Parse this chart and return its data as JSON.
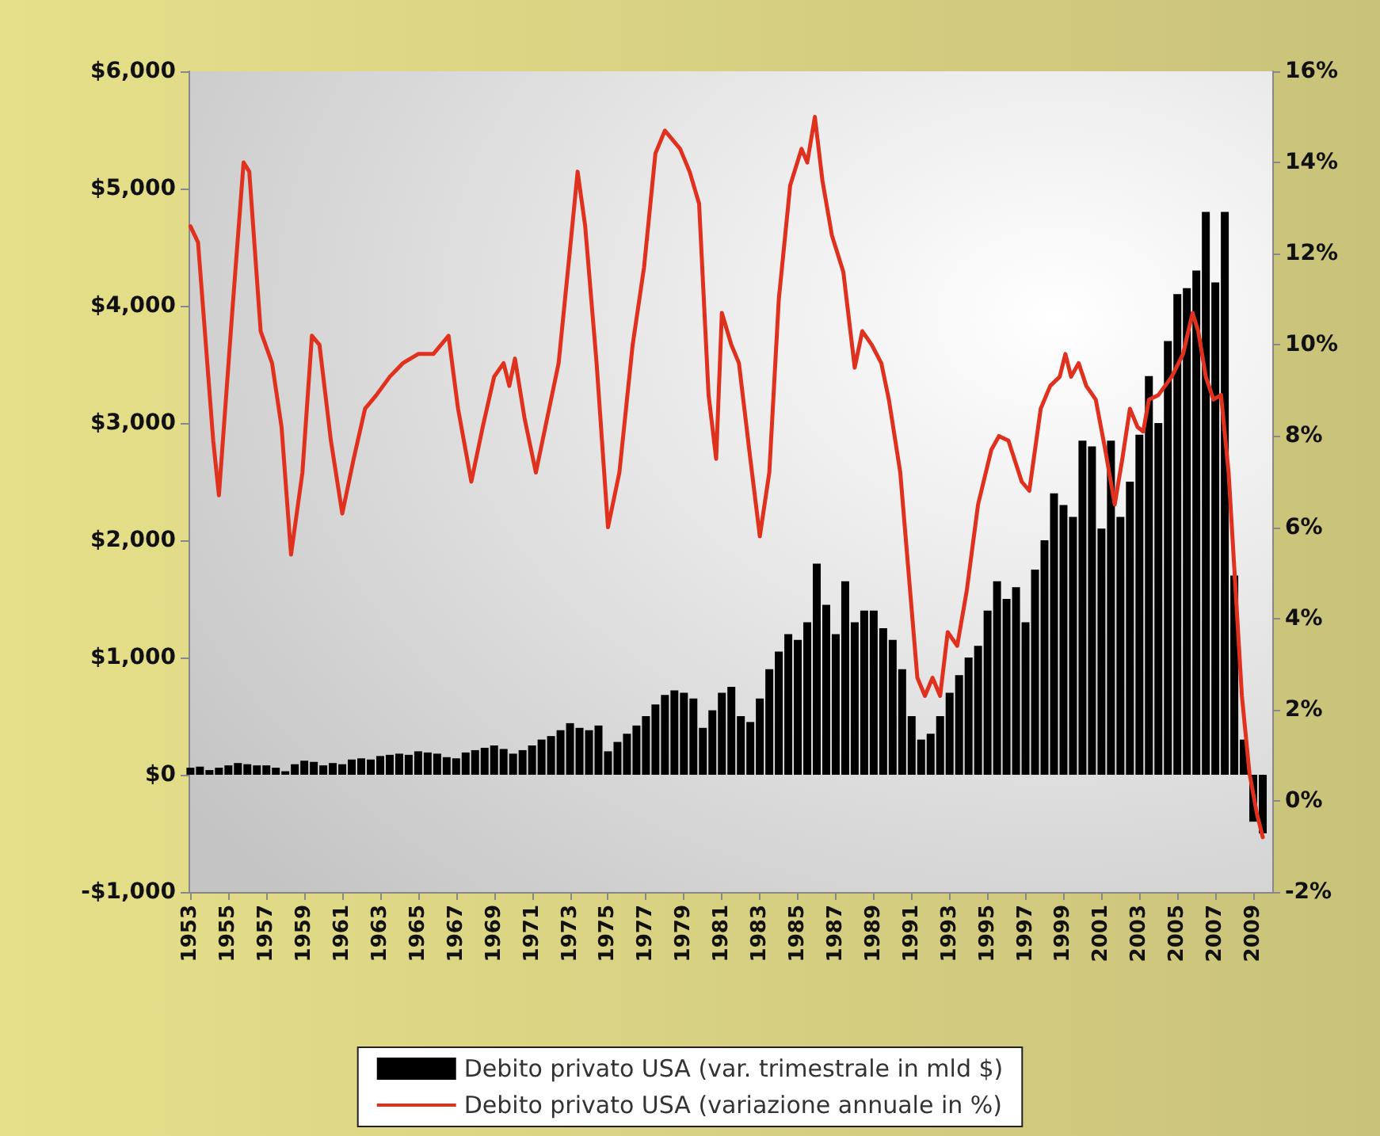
{
  "chart_data": {
    "type": "bar",
    "legend": "bottom",
    "grid": false,
    "xlim": [
      1952.9,
      2010
    ],
    "xticks": [
      1953,
      1955,
      1957,
      1959,
      1961,
      1963,
      1965,
      1967,
      1969,
      1971,
      1973,
      1975,
      1977,
      1979,
      1981,
      1983,
      1985,
      1987,
      1989,
      1991,
      1993,
      1995,
      1997,
      1999,
      2001,
      2003,
      2005,
      2007,
      2009
    ],
    "ylim": [
      -1000,
      6000
    ],
    "yticks": [
      {
        "value": -1000,
        "label": "-$1,000"
      },
      {
        "value": 0,
        "label": "$0"
      },
      {
        "value": 1000,
        "label": "$1,000"
      },
      {
        "value": 2000,
        "label": "$2,000"
      },
      {
        "value": 3000,
        "label": "$3,000"
      },
      {
        "value": 4000,
        "label": "$4,000"
      },
      {
        "value": 5000,
        "label": "$5,000"
      },
      {
        "value": 6000,
        "label": "$6,000"
      }
    ],
    "y2lim": [
      -2,
      16
    ],
    "y2ticks": [
      {
        "value": -2,
        "label": "-2%"
      },
      {
        "value": 0,
        "label": "0%"
      },
      {
        "value": 2,
        "label": "2%"
      },
      {
        "value": 4,
        "label": "4%"
      },
      {
        "value": 6,
        "label": "6%"
      },
      {
        "value": 8,
        "label": "8%"
      },
      {
        "value": 10,
        "label": "10%"
      },
      {
        "value": 12,
        "label": "12%"
      },
      {
        "value": 14,
        "label": "14%"
      },
      {
        "value": 16,
        "label": "16%"
      }
    ],
    "series": [
      {
        "name": "Debito privato USA (var. trimestrale in mld $)",
        "color": "#000000",
        "x": [
          1953,
          1953.5,
          1954,
          1954.5,
          1955,
          1955.5,
          1956,
          1956.5,
          1957,
          1957.5,
          1958,
          1958.5,
          1959,
          1959.5,
          1960,
          1960.5,
          1961,
          1961.5,
          1962,
          1962.5,
          1963,
          1963.5,
          1964,
          1964.5,
          1965,
          1965.5,
          1966,
          1966.5,
          1967,
          1967.5,
          1968,
          1968.5,
          1969,
          1969.5,
          1970,
          1970.5,
          1971,
          1971.5,
          1972,
          1972.5,
          1973,
          1973.5,
          1974,
          1974.5,
          1975,
          1975.5,
          1976,
          1976.5,
          1977,
          1977.5,
          1978,
          1978.5,
          1979,
          1979.5,
          1980,
          1980.5,
          1981,
          1981.5,
          1982,
          1982.5,
          1983,
          1983.5,
          1984,
          1984.5,
          1985,
          1985.5,
          1986,
          1986.5,
          1987,
          1987.5,
          1988,
          1988.5,
          1989,
          1989.5,
          1990,
          1990.5,
          1991,
          1991.5,
          1992,
          1992.5,
          1993,
          1993.5,
          1994,
          1994.5,
          1995,
          1995.5,
          1996,
          1996.5,
          1997,
          1997.5,
          1998,
          1998.5,
          1999,
          1999.5,
          2000,
          2000.5,
          2001,
          2001.5,
          2002,
          2002.5,
          2003,
          2003.5,
          2004,
          2004.5,
          2005,
          2005.5,
          2006,
          2006.5,
          2007,
          2007.5,
          2008,
          2008.5,
          2009,
          2009.5
        ],
        "values": [
          60,
          70,
          40,
          60,
          80,
          100,
          90,
          80,
          80,
          60,
          30,
          90,
          120,
          110,
          80,
          100,
          90,
          130,
          140,
          130,
          160,
          170,
          180,
          170,
          200,
          190,
          180,
          150,
          140,
          190,
          210,
          230,
          250,
          220,
          180,
          210,
          250,
          300,
          330,
          380,
          440,
          400,
          380,
          420,
          200,
          280,
          350,
          420,
          500,
          600,
          680,
          720,
          700,
          650,
          400,
          550,
          700,
          750,
          500,
          450,
          650,
          900,
          1050,
          1200,
          1150,
          1300,
          1800,
          1450,
          1200,
          1650,
          1300,
          1400,
          1400,
          1250,
          1150,
          900,
          500,
          300,
          350,
          500,
          700,
          850,
          1000,
          1100,
          1400,
          1650,
          1500,
          1600,
          1300,
          1750,
          2000,
          2400,
          2300,
          2200,
          2850,
          2800,
          2100,
          2850,
          2200,
          2500,
          2900,
          3400,
          3000,
          3700,
          4100,
          4150,
          4300,
          4800,
          4200,
          4800,
          1700,
          300,
          -400,
          -500
        ]
      },
      {
        "type": "line",
        "axis": "y2",
        "name": "Debito privato USA (variazione annuale in %)",
        "color": "#e0301e",
        "x": [
          1953,
          1953.4,
          1954.2,
          1954.5,
          1955.2,
          1955.8,
          1956.1,
          1956.7,
          1957.3,
          1957.8,
          1958.3,
          1958.9,
          1959.4,
          1959.8,
          1960.4,
          1961,
          1961.6,
          1962.2,
          1962.8,
          1963.5,
          1964.2,
          1965,
          1965.8,
          1966.6,
          1967.1,
          1967.8,
          1968.4,
          1969,
          1969.5,
          1969.8,
          1970.1,
          1970.6,
          1971.2,
          1971.8,
          1972.4,
          1973,
          1973.4,
          1973.8,
          1974.4,
          1975,
          1975.6,
          1976.3,
          1976.9,
          1977.5,
          1978,
          1978.4,
          1978.8,
          1979.3,
          1979.8,
          1980.3,
          1980.7,
          1981,
          1981.5,
          1981.9,
          1982.5,
          1983,
          1983.5,
          1984,
          1984.6,
          1985.2,
          1985.5,
          1985.9,
          1986.3,
          1986.8,
          1987.4,
          1988,
          1988.4,
          1988.9,
          1989.4,
          1989.8,
          1990.4,
          1990.9,
          1991.3,
          1991.7,
          1992.1,
          1992.5,
          1992.9,
          1993.4,
          1993.9,
          1994.5,
          1995.2,
          1995.6,
          1996.1,
          1996.8,
          1997.2,
          1997.8,
          1998.3,
          1998.8,
          1999.1,
          1999.4,
          1999.8,
          2000.2,
          2000.7,
          2001.2,
          2001.7,
          2002.1,
          2002.5,
          2002.9,
          2003.2,
          2003.5,
          2004,
          2004.7,
          2005.3,
          2005.8,
          2006.1,
          2006.5,
          2006.9,
          2007.3,
          2007.7,
          2008,
          2008.4,
          2008.8,
          2009.2,
          2009.5
        ],
        "values": [
          12.6,
          12.25,
          7.9,
          6.7,
          10.7,
          14,
          13.8,
          10.3,
          9.6,
          8.2,
          5.4,
          7.2,
          10.2,
          10,
          7.9,
          6.3,
          7.5,
          8.6,
          8.9,
          9.3,
          9.6,
          9.8,
          9.8,
          10.2,
          8.6,
          7,
          8.2,
          9.3,
          9.6,
          9.1,
          9.7,
          8.4,
          7.2,
          8.4,
          9.6,
          12.1,
          13.8,
          12.6,
          9.6,
          6,
          7.2,
          10,
          11.7,
          14.2,
          14.7,
          14.5,
          14.3,
          13.8,
          13.1,
          8.9,
          7.5,
          10.7,
          10,
          9.6,
          7.5,
          5.8,
          7.2,
          11,
          13.5,
          14.3,
          14,
          15,
          13.6,
          12.4,
          11.6,
          9.5,
          10.3,
          10,
          9.6,
          8.8,
          7.2,
          4.7,
          2.7,
          2.3,
          2.7,
          2.3,
          3.7,
          3.4,
          4.6,
          6.5,
          7.7,
          8,
          7.9,
          7,
          6.8,
          8.6,
          9.1,
          9.3,
          9.8,
          9.3,
          9.6,
          9.1,
          8.8,
          7.7,
          6.5,
          7.5,
          8.6,
          8.2,
          8.1,
          8.8,
          8.9,
          9.3,
          9.8,
          10.7,
          10.3,
          9.3,
          8.8,
          8.9,
          7.2,
          5.1,
          2.3,
          0.6,
          -0.3,
          -0.8
        ]
      }
    ]
  }
}
